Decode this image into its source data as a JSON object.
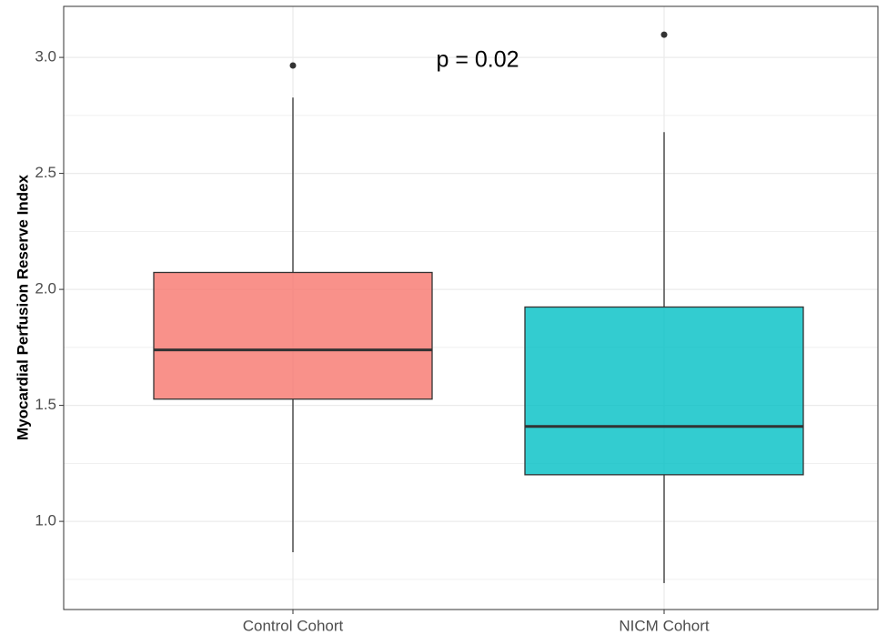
{
  "chart_data": {
    "type": "box",
    "y_label": "Myocardial Perfusion Reserve Index",
    "annotation": "p = 0.02",
    "categories": [
      "Control Cohort",
      "NICM Cohort"
    ],
    "boxes": [
      {
        "whisker_low": 0.867,
        "q1": 1.527,
        "median": 1.739,
        "q3": 2.073,
        "whisker_high": 2.827,
        "outliers": [
          2.965
        ],
        "color": "#F8766D"
      },
      {
        "whisker_low": 0.734,
        "q1": 1.201,
        "median": 1.409,
        "q3": 1.924,
        "whisker_high": 2.678,
        "outliers": [
          3.098
        ],
        "color": "#00BFC4"
      }
    ],
    "ylim": [
      0.62,
      3.22
    ],
    "yticks": [
      {
        "value": 1,
        "label": "1.0"
      },
      1.5,
      {
        "value": 2,
        "label": "2.0"
      },
      2.5,
      {
        "value": 3,
        "label": "3.0"
      }
    ],
    "y_minor_ticks": [
      0.75,
      1.25,
      1.75,
      2.25,
      2.75
    ],
    "grid": true
  }
}
